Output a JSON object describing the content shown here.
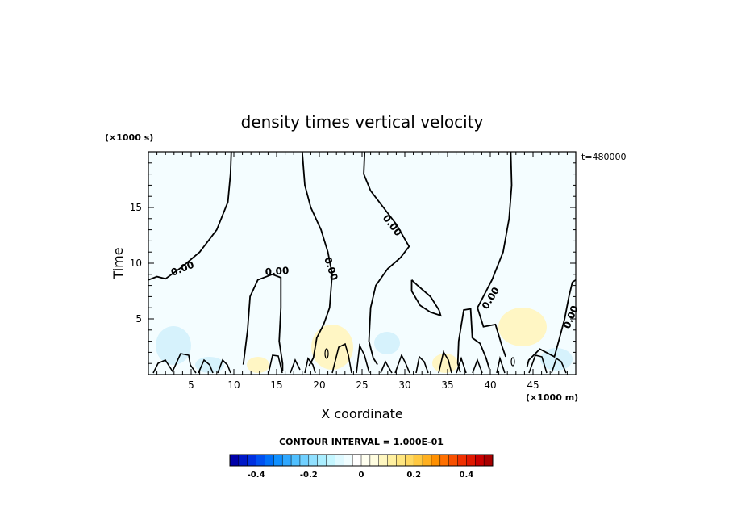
{
  "chart_data": {
    "type": "contour",
    "title": "density times vertical velocity",
    "xlabel": "X coordinate",
    "ylabel": "Time",
    "x_unit": "(×1000 m)",
    "y_unit": "(×1000 s)",
    "time_stamp": "t=480000",
    "xlim": [
      0,
      50
    ],
    "ylim": [
      0,
      20
    ],
    "x_ticks": [
      5,
      10,
      15,
      20,
      25,
      30,
      35,
      40,
      45
    ],
    "x_tick_labels": [
      "5",
      "10",
      "15",
      "20",
      "25",
      "30",
      "35",
      "40",
      "45"
    ],
    "y_ticks": [
      5,
      10,
      15
    ],
    "y_tick_labels": [
      "5",
      "10",
      "15"
    ],
    "contour_interval_text": "CONTOUR INTERVAL = 1.000E-01",
    "contour_labels": [
      "0.00",
      "0.00",
      "0.00",
      "0.00",
      "0.00",
      "0.00"
    ],
    "colorbar": {
      "range": [
        -0.5,
        0.5
      ],
      "ticks": [
        -0.4,
        -0.2,
        0,
        0.2,
        0.4
      ],
      "tick_labels": [
        "-0.4",
        "-0.2",
        "0",
        "0.2",
        "0.4"
      ]
    },
    "zero_contours": [
      [
        [
          0,
          8.5
        ],
        [
          1,
          8.8
        ],
        [
          2,
          8.6
        ],
        [
          4,
          9.7
        ],
        [
          6,
          11
        ],
        [
          8,
          13
        ],
        [
          9.3,
          15.5
        ],
        [
          9.6,
          18
        ],
        [
          9.7,
          20
        ]
      ],
      [
        [
          11.1,
          0.9
        ],
        [
          11.6,
          4
        ],
        [
          11.9,
          7
        ],
        [
          12.8,
          8.5
        ],
        [
          14.5,
          9
        ],
        [
          15.5,
          8.7
        ],
        [
          15.5,
          6
        ],
        [
          15.3,
          3
        ],
        [
          15.7,
          1
        ],
        [
          15.7,
          0.3
        ]
      ],
      [
        [
          18,
          20
        ],
        [
          18.3,
          17
        ],
        [
          19,
          15
        ],
        [
          20.2,
          13
        ],
        [
          21,
          11
        ],
        [
          21.5,
          9
        ],
        [
          21.2,
          6
        ],
        [
          20.5,
          4.5
        ],
        [
          19.7,
          3.3
        ],
        [
          19.3,
          1.5
        ],
        [
          18.8,
          0.8
        ]
      ],
      [
        [
          25.3,
          20
        ],
        [
          25.2,
          18
        ],
        [
          26,
          16.5
        ],
        [
          27.5,
          15
        ],
        [
          29,
          13.5
        ],
        [
          30.5,
          11.5
        ],
        [
          29.5,
          10.5
        ],
        [
          28,
          9.5
        ],
        [
          26.6,
          8
        ],
        [
          26,
          6
        ],
        [
          25.8,
          3
        ],
        [
          26.3,
          1.5
        ],
        [
          26.8,
          0.9
        ]
      ],
      [
        [
          30.8,
          8.5
        ],
        [
          31.5,
          8
        ],
        [
          33,
          7
        ],
        [
          34,
          5.8
        ],
        [
          34.2,
          5.3
        ],
        [
          33,
          5.6
        ],
        [
          31.8,
          6.2
        ],
        [
          30.8,
          7.5
        ],
        [
          30.8,
          8.5
        ]
      ],
      [
        [
          42.4,
          20
        ],
        [
          42.5,
          17
        ],
        [
          42.2,
          14
        ],
        [
          41.5,
          11
        ],
        [
          40.2,
          8.5
        ],
        [
          38.5,
          6
        ],
        [
          39.2,
          4.3
        ],
        [
          40.6,
          4.5
        ],
        [
          41.4,
          2.5
        ],
        [
          41.8,
          1.6
        ]
      ],
      [
        [
          44.3,
          0.7
        ],
        [
          44.5,
          1.3
        ],
        [
          45.8,
          2.3
        ],
        [
          47.5,
          1.6
        ],
        [
          48,
          3
        ],
        [
          48.7,
          5
        ],
        [
          49.2,
          7
        ],
        [
          49.6,
          8.3
        ],
        [
          50,
          8.5
        ]
      ],
      [
        [
          36.5,
          0.2
        ],
        [
          36.2,
          1
        ],
        [
          36.3,
          3
        ],
        [
          36.9,
          5.8
        ],
        [
          37.7,
          5.9
        ],
        [
          37.9,
          3.3
        ],
        [
          38.8,
          2.8
        ],
        [
          39.5,
          1.5
        ],
        [
          39.9,
          0.5
        ]
      ]
    ],
    "colormap": [
      "#0000a8",
      "#0018c8",
      "#0030e0",
      "#0050f0",
      "#0070f8",
      "#1090ff",
      "#30a8ff",
      "#50c0ff",
      "#70d0ff",
      "#90e0ff",
      "#aaeeff",
      "#c4f6ff",
      "#def9ff",
      "#f0fdff",
      "#ffffff",
      "#fffff0",
      "#fffde0",
      "#fff7c0",
      "#fff0a0",
      "#ffe680",
      "#ffd860",
      "#ffc840",
      "#ffb020",
      "#ff9000",
      "#ff7000",
      "#f85000",
      "#f03000",
      "#e01800",
      "#c80000",
      "#a80000"
    ]
  }
}
